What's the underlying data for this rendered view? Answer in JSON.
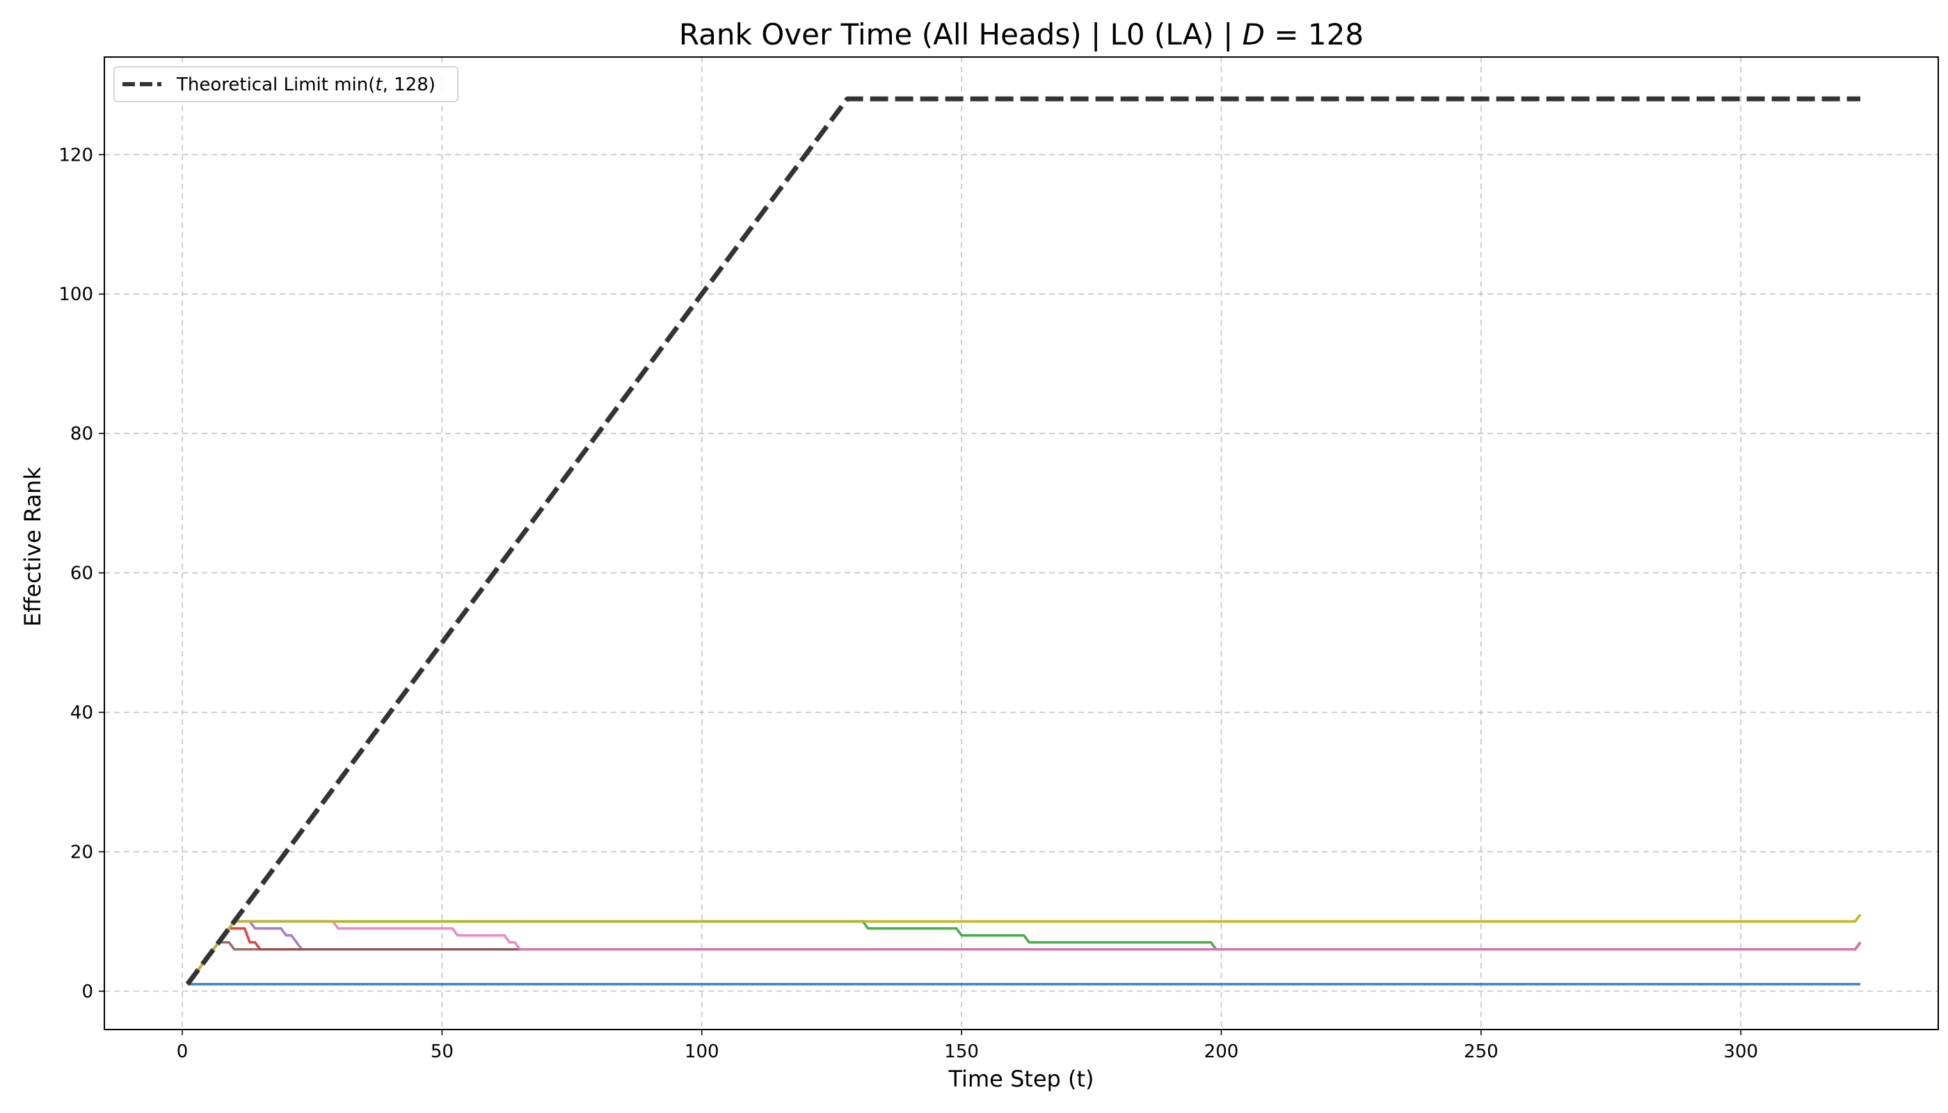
{
  "chart_data": {
    "type": "line",
    "title": "Rank Over Time (All Heads) | L0 (LA) | D = 128",
    "title_parts": {
      "prefix": "Rank Over Time (All Heads) | L0 (LA) | ",
      "var": "D",
      "suffix": " = 128"
    },
    "xlabel": "Time Step (t)",
    "ylabel": "Effective Rank",
    "xlim": [
      -15,
      338
    ],
    "ylim": [
      -5.5,
      134
    ],
    "xticks": [
      0,
      50,
      100,
      150,
      200,
      250,
      300
    ],
    "yticks": [
      0,
      20,
      40,
      60,
      80,
      100,
      120
    ],
    "grid": true,
    "legend": {
      "placement": "top-left",
      "entry": "Theoretical Limit min(t, 128)",
      "entry_parts": {
        "prefix": "Theoretical Limit min(",
        "var": "t",
        "suffix": ", 128)"
      }
    },
    "series": [
      {
        "name": "Theoretical Limit min(t, 128)",
        "color": "#333333",
        "style": "dashed",
        "x": [
          1,
          128,
          323
        ],
        "y": [
          1,
          128,
          128
        ]
      },
      {
        "color": "#1f77b4",
        "style": "solid",
        "x": [
          1,
          323
        ],
        "y": [
          1,
          1
        ]
      },
      {
        "color": "#ff7f0e",
        "style": "solid",
        "x": [
          1,
          10,
          322,
          323
        ],
        "y": [
          1,
          10,
          10,
          11
        ]
      },
      {
        "color": "#2ca02c",
        "style": "solid",
        "x": [
          1,
          10,
          131,
          132,
          149,
          150,
          162,
          163,
          198,
          199,
          322,
          323
        ],
        "y": [
          1,
          10,
          10,
          9,
          9,
          8,
          8,
          7,
          7,
          6,
          6,
          7
        ]
      },
      {
        "color": "#d62728",
        "style": "solid",
        "x": [
          1,
          9,
          12,
          13,
          14,
          15,
          322,
          323
        ],
        "y": [
          1,
          9,
          9,
          7,
          7,
          6,
          6,
          7
        ]
      },
      {
        "color": "#9467bd",
        "style": "solid",
        "x": [
          1,
          10,
          13,
          14,
          19,
          20,
          21,
          23,
          322,
          323
        ],
        "y": [
          1,
          10,
          10,
          9,
          9,
          8,
          8,
          6,
          6,
          7
        ]
      },
      {
        "color": "#8c564b",
        "style": "solid",
        "x": [
          1,
          7,
          9,
          10,
          322,
          323
        ],
        "y": [
          1,
          7,
          7,
          6,
          6,
          7
        ]
      },
      {
        "color": "#e377c2",
        "style": "solid",
        "x": [
          1,
          10,
          29,
          30,
          52,
          53,
          62,
          63,
          64,
          65,
          322,
          323
        ],
        "y": [
          1,
          10,
          10,
          9,
          9,
          8,
          8,
          7,
          7,
          6,
          6,
          7
        ]
      },
      {
        "color": "#bcbd22",
        "style": "solid",
        "x": [
          1,
          10,
          322,
          323
        ],
        "y": [
          1,
          10,
          10,
          11
        ]
      }
    ]
  }
}
